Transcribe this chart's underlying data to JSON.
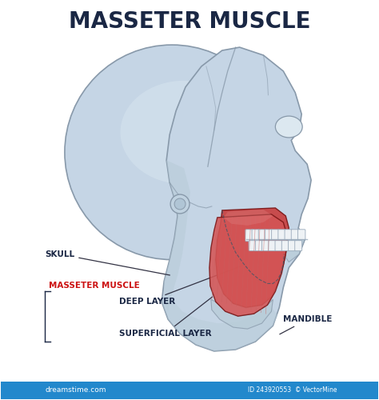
{
  "title": "MASSETER MUSCLE",
  "title_color": "#1a2744",
  "title_fontsize": 20,
  "title_fontweight": "bold",
  "bg_color": "#ffffff",
  "skull_color": "#c5d5e5",
  "skull_color2": "#b8ccd8",
  "skull_outline": "#8899aa",
  "skull_shadow": "#a8becc",
  "muscle_deep": "#c84040",
  "muscle_super": "#d45555",
  "muscle_highlight": "#e08080",
  "muscle_fiber": "#b83030",
  "muscle_outline": "#7a1515",
  "tooth_color": "#eef2f5",
  "tooth_outline": "#99aabb",
  "label_skull": "SKULL",
  "label_masseter": "MASSETER MUSCLE",
  "label_masseter_color": "#cc1111",
  "label_deep": "DEEP LAYER",
  "label_superficial": "SUPERFICIAL LAYER",
  "label_mandible": "MANDIBLE",
  "label_color": "#1a2744",
  "label_fontsize": 7.5,
  "label_fontweight": "bold",
  "line_color": "#333344",
  "watermark": "dreamstime.com",
  "watermark2": "ID 243920553  © VectorMine",
  "wm_bg": "#2288cc"
}
